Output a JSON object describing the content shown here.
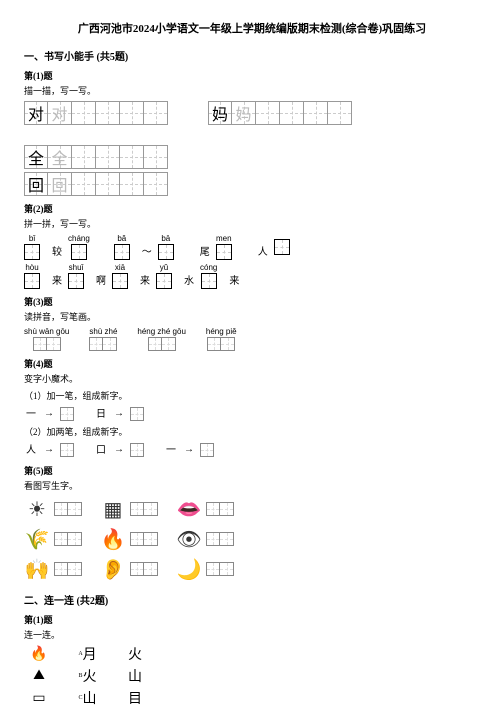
{
  "title": "广西河池市2024小学语文一年级上学期统编版期末检测(综合卷)巩固练习",
  "s1": {
    "header": "一、书写小能手 (共5题)"
  },
  "q1": {
    "num": "第(1)题",
    "sub": "描一描，写一写。",
    "groups": [
      {
        "chars": [
          "对",
          "对",
          "",
          "",
          "",
          ""
        ]
      },
      {
        "chars": [
          "妈",
          "妈",
          "",
          "",
          "",
          ""
        ]
      },
      {
        "chars": [
          "全",
          "全",
          "",
          "",
          "",
          ""
        ]
      },
      {
        "chars": [
          "回",
          "回",
          "",
          "",
          "",
          ""
        ]
      }
    ]
  },
  "q2": {
    "num": "第(2)题",
    "sub": "拼一拼，写一写。",
    "r1": [
      {
        "py": "bǐ",
        "box": true,
        "fill": ""
      },
      {
        "plain": "较"
      },
      {
        "py": "cháng",
        "box": true,
        "fill": ""
      },
      {
        "spacer": true
      },
      {
        "py": "bǎ",
        "box": true,
        "fill": ""
      },
      {
        "plain": "～"
      },
      {
        "py": "bā",
        "box": true,
        "fill": ""
      },
      {
        "spacer": true
      },
      {
        "plain": "尾"
      },
      {
        "py": "men",
        "box": true,
        "fill": ""
      },
      {
        "spacer": true
      },
      {
        "plain": "人"
      },
      {
        "box": true,
        "fill": ""
      }
    ],
    "r2": [
      {
        "py": "hòu",
        "box": true,
        "fill": ""
      },
      {
        "plain": "来"
      },
      {
        "py": "shuǐ",
        "box": true,
        "fill": ""
      },
      {
        "plain": "啊"
      },
      {
        "py": "xiā",
        "box": true,
        "fill": ""
      },
      {
        "plain": "来"
      },
      {
        "py": "yǔ",
        "box": true,
        "fill": ""
      },
      {
        "plain": "水"
      },
      {
        "py": "cóng",
        "box": true,
        "fill": ""
      },
      {
        "plain": "来"
      }
    ]
  },
  "q3": {
    "num": "第(3)题",
    "sub": "读拼音，写笔画。",
    "items": [
      "shù wān gōu",
      "shù zhé",
      "héng zhé gōu",
      "héng piě"
    ]
  },
  "q4": {
    "num": "第(4)题",
    "sub": "变字小魔术。",
    "l1": "（1）加一笔，组成新字。",
    "c1a": "一",
    "c1b": "日",
    "l2": "（2）加两笔，组成新字。",
    "c2a": "人",
    "c2b": "口",
    "c2c": "一"
  },
  "q5": {
    "num": "第(5)题",
    "sub": "看图写生字。",
    "icons": [
      [
        "sun-icon",
        "tray-icon",
        "lips-icon"
      ],
      [
        "rice-icon",
        "fire-icon",
        "eye-icon"
      ],
      [
        "hands-icon",
        "ear-icon",
        "moon-icon"
      ]
    ],
    "glyphs": {
      "sun-icon": "☀",
      "tray-icon": "▦",
      "lips-icon": "👄",
      "rice-icon": "🌾",
      "fire-icon": "🔥",
      "eye-icon": "👁",
      "hands-icon": "🙌",
      "ear-icon": "👂",
      "moon-icon": "🌙"
    }
  },
  "s2": {
    "header": "二、连一连 (共2题)"
  },
  "q6": {
    "num": "第(1)题",
    "sub": "连一连。",
    "cells": [
      [
        "🔥",
        "A",
        "月",
        "kai",
        "火",
        ""
      ],
      [
        "⛰",
        "B",
        "火",
        "kai",
        "山",
        ""
      ],
      [
        "▭",
        "C",
        "山",
        "kai",
        "目",
        ""
      ]
    ]
  }
}
